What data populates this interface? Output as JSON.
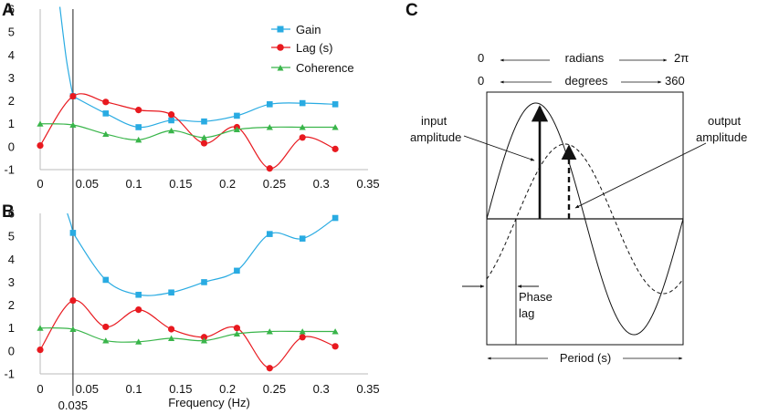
{
  "chart_data": [
    {
      "panel": "A",
      "type": "line",
      "xlim": [
        0,
        0.35
      ],
      "ylim": [
        -1,
        6
      ],
      "x_ticks": [
        "0",
        "0.05",
        "0.1",
        "0.15",
        "0.2",
        "0.25",
        "0.3",
        "0.35"
      ],
      "y_ticks": [
        "-1",
        "0",
        "1",
        "2",
        "3",
        "4",
        "5",
        "6"
      ],
      "vertical_line_x": 0.035,
      "legend": [
        "Gain",
        "Lag (s)",
        "Coherence"
      ],
      "series": [
        {
          "name": "Gain",
          "color": "#29abe2",
          "marker": "square",
          "x": [
            0.035,
            0.07,
            0.105,
            0.14,
            0.175,
            0.21,
            0.245,
            0.28,
            0.315
          ],
          "y": [
            2.2,
            1.45,
            0.85,
            1.15,
            1.1,
            1.35,
            1.85,
            1.9,
            1.85
          ],
          "leading_segment": {
            "x": [
              0.021,
              0.028
            ],
            "y": [
              6.1,
              3.8
            ]
          }
        },
        {
          "name": "Lag (s)",
          "color": "#e8191f",
          "marker": "circle",
          "x": [
            0,
            0.035,
            0.07,
            0.105,
            0.14,
            0.175,
            0.21,
            0.245,
            0.28,
            0.315
          ],
          "y": [
            0.05,
            2.2,
            1.95,
            1.6,
            1.4,
            0.15,
            0.85,
            -0.95,
            0.4,
            -0.1
          ]
        },
        {
          "name": "Coherence",
          "color": "#39b54a",
          "marker": "triangle",
          "x": [
            0,
            0.035,
            0.07,
            0.105,
            0.14,
            0.175,
            0.21,
            0.245,
            0.28,
            0.315
          ],
          "y": [
            1.0,
            0.95,
            0.55,
            0.3,
            0.7,
            0.4,
            0.75,
            0.85,
            0.85,
            0.85
          ]
        }
      ]
    },
    {
      "panel": "B",
      "type": "line",
      "xlabel": "Frequency (Hz)",
      "xlim": [
        0,
        0.35
      ],
      "ylim": [
        -1,
        6
      ],
      "x_ticks": [
        "0",
        "0.05",
        "0.1",
        "0.15",
        "0.2",
        "0.25",
        "0.3",
        "0.35"
      ],
      "y_ticks": [
        "-1",
        "0",
        "1",
        "2",
        "3",
        "4",
        "5",
        "6"
      ],
      "vertical_line_x": 0.035,
      "vertical_line_label": "0.035",
      "series": [
        {
          "name": "Gain",
          "color": "#29abe2",
          "marker": "square",
          "x": [
            0.035,
            0.07,
            0.105,
            0.14,
            0.175,
            0.21,
            0.245,
            0.28,
            0.315
          ],
          "y": [
            5.15,
            3.1,
            2.45,
            2.55,
            3.0,
            3.5,
            5.1,
            4.9,
            5.8
          ],
          "leading_segment": {
            "x": [
              0.029,
              0.033
            ],
            "y": [
              6.0,
              5.5
            ]
          }
        },
        {
          "name": "Lag (s)",
          "color": "#e8191f",
          "marker": "circle",
          "x": [
            0,
            0.035,
            0.07,
            0.105,
            0.14,
            0.175,
            0.21,
            0.245,
            0.28,
            0.315
          ],
          "y": [
            0.05,
            2.2,
            1.05,
            1.8,
            0.95,
            0.6,
            1.0,
            -0.75,
            0.6,
            0.2
          ]
        },
        {
          "name": "Coherence",
          "color": "#39b54a",
          "marker": "triangle",
          "x": [
            0,
            0.035,
            0.07,
            0.105,
            0.14,
            0.175,
            0.21,
            0.245,
            0.28,
            0.315
          ],
          "y": [
            1.0,
            0.95,
            0.45,
            0.4,
            0.55,
            0.45,
            0.75,
            0.85,
            0.85,
            0.85
          ]
        }
      ]
    }
  ],
  "panels": {
    "a": "A",
    "b": "B",
    "c": "C"
  },
  "diagram": {
    "top_scale": {
      "left": "0",
      "unit": "radians",
      "right": "2π"
    },
    "bottom_scale": {
      "left": "0",
      "unit": "degrees",
      "right": "360"
    },
    "input_label": [
      "input",
      "amplitude"
    ],
    "output_label": [
      "output",
      "amplitude"
    ],
    "phase_label": [
      "Phase",
      "lag"
    ],
    "period_label": "Period (s)"
  }
}
